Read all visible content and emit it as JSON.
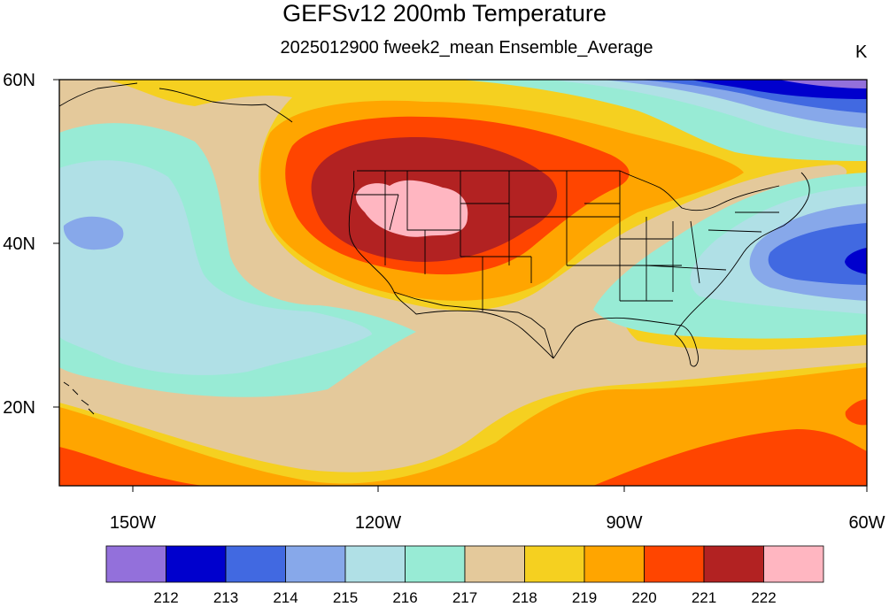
{
  "title": "GEFSv12 200mb Temperature",
  "subtitle": "2025012900 fweek2_mean Ensemble_Average",
  "units": "K",
  "axes": {
    "y_labels": [
      "60N",
      "40N",
      "20N"
    ],
    "x_labels": [
      "150W",
      "120W",
      "90W",
      "60W"
    ]
  },
  "colorbar": {
    "colors": [
      "#9370db",
      "#0000cd",
      "#4169e1",
      "#87a8ea",
      "#b0e0e6",
      "#98ebd5",
      "#e4c99b",
      "#f5d020",
      "#ffa500",
      "#ff4500",
      "#b22222",
      "#ffb6c1"
    ],
    "labels": [
      "212",
      "213",
      "214",
      "215",
      "216",
      "217",
      "218",
      "219",
      "220",
      "221",
      "222"
    ]
  }
}
